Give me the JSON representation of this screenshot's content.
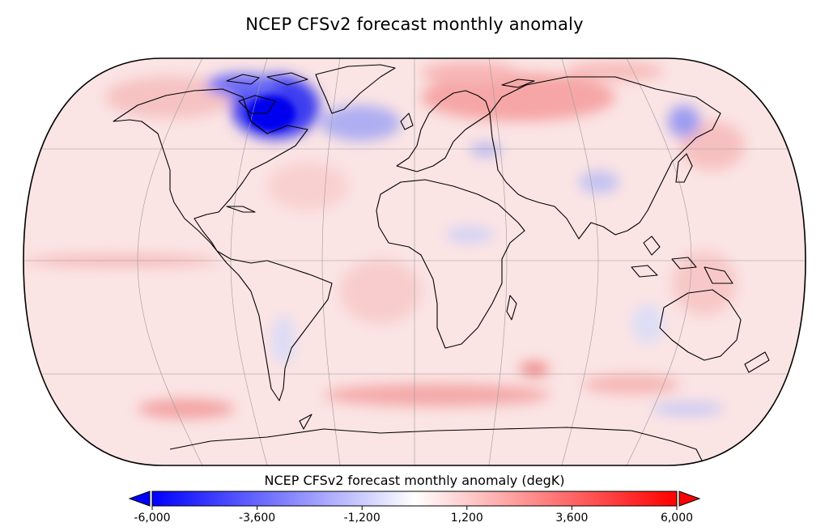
{
  "map": {
    "title": "NCEP CFSv2 forecast monthly anomaly",
    "projection": "Robinson",
    "graticule": {
      "lon_step_deg": 30,
      "lat_step_deg": 30
    },
    "colors": {
      "negative": "#0000ff",
      "neutral": "#ffffff",
      "positive": "#ff0000",
      "land_outline": "#000000"
    },
    "anomaly_regions": [
      {
        "name": "Canadian Arctic / Hudson Bay",
        "sign": "negative",
        "intensity": "strong"
      },
      {
        "name": "Greenland Sea",
        "sign": "negative",
        "intensity": "moderate"
      },
      {
        "name": "Russian Arctic / Siberia",
        "sign": "positive",
        "intensity": "moderate"
      },
      {
        "name": "Eastern Siberia",
        "sign": "negative",
        "intensity": "weak"
      },
      {
        "name": "Southern Ocean",
        "sign": "positive",
        "intensity": "moderate"
      },
      {
        "name": "Equatorial Pacific",
        "sign": "positive",
        "intensity": "weak"
      }
    ]
  },
  "colorbar": {
    "label": "NCEP CFSv2 forecast monthly anomaly (degK)",
    "min": -6000,
    "max": 6000,
    "ticks": [
      {
        "value": -6000,
        "label": "-6,000"
      },
      {
        "value": -3600,
        "label": "-3,600"
      },
      {
        "value": -1200,
        "label": "-1,200"
      },
      {
        "value": 1200,
        "label": "1,200"
      },
      {
        "value": 3600,
        "label": "3,600"
      },
      {
        "value": 6000,
        "label": "6,000"
      }
    ],
    "extend": "both",
    "colors": {
      "low": "#0000ff",
      "mid": "#ffffff",
      "high": "#ff0000"
    }
  }
}
